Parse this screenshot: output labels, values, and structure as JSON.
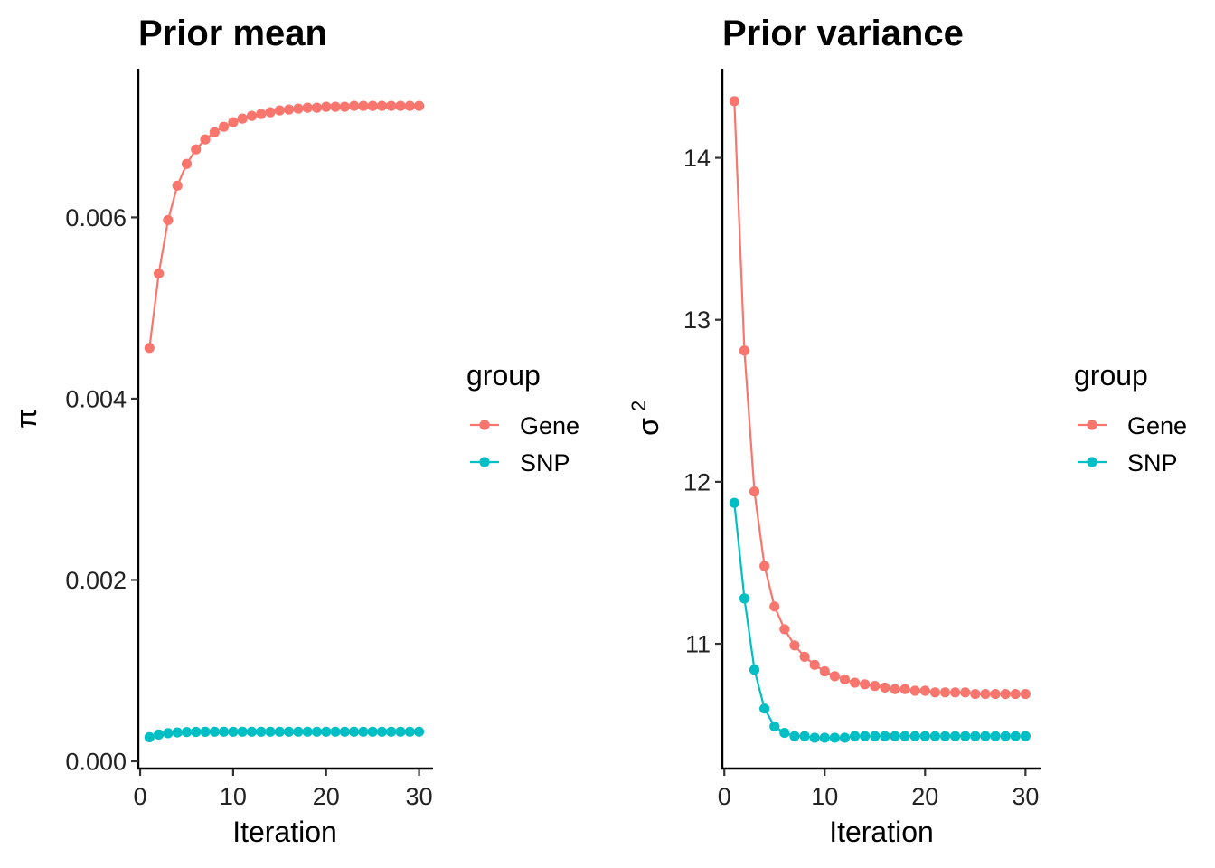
{
  "colors": {
    "Gene": "#F8766D",
    "SNP": "#00BFC4"
  },
  "chart_data": [
    {
      "type": "line",
      "title": "Prior mean",
      "xlabel": "Iteration",
      "ylabel": "π",
      "xlim": [
        -0.2,
        31.5
      ],
      "ylim": [
        -8e-05,
        0.00764
      ],
      "xticks": [
        0,
        10,
        20,
        30
      ],
      "xtick_labels": [
        "0",
        "10",
        "20",
        "30"
      ],
      "yticks": [
        0.0,
        0.002,
        0.004,
        0.006
      ],
      "ytick_labels": [
        "0.000",
        "0.002",
        "0.004",
        "0.006"
      ],
      "legend": {
        "title": "group",
        "entries": [
          "Gene",
          "SNP"
        ],
        "position": "right"
      },
      "series": [
        {
          "name": "Gene",
          "x": [
            1,
            2,
            3,
            4,
            5,
            6,
            7,
            8,
            9,
            10,
            11,
            12,
            13,
            14,
            15,
            16,
            17,
            18,
            19,
            20,
            21,
            22,
            23,
            24,
            25,
            26,
            27,
            28,
            29,
            30
          ],
          "values": [
            0.00456,
            0.00538,
            0.00597,
            0.00635,
            0.00659,
            0.00675,
            0.00686,
            0.00694,
            0.007,
            0.00705,
            0.00709,
            0.00712,
            0.00714,
            0.00716,
            0.00718,
            0.00719,
            0.0072,
            0.00721,
            0.00721,
            0.00722,
            0.00722,
            0.00722,
            0.00723,
            0.00723,
            0.00723,
            0.00723,
            0.00723,
            0.00723,
            0.00723,
            0.00723
          ]
        },
        {
          "name": "SNP",
          "x": [
            1,
            2,
            3,
            4,
            5,
            6,
            7,
            8,
            9,
            10,
            11,
            12,
            13,
            14,
            15,
            16,
            17,
            18,
            19,
            20,
            21,
            22,
            23,
            24,
            25,
            26,
            27,
            28,
            29,
            30
          ],
          "values": [
            0.000265,
            0.000295,
            0.00031,
            0.000318,
            0.000322,
            0.000324,
            0.000325,
            0.000326,
            0.000326,
            0.000326,
            0.000326,
            0.000326,
            0.000326,
            0.000326,
            0.000326,
            0.000326,
            0.000326,
            0.000326,
            0.000326,
            0.000326,
            0.000326,
            0.000326,
            0.000326,
            0.000326,
            0.000326,
            0.000326,
            0.000326,
            0.000326,
            0.000326,
            0.000326
          ]
        }
      ]
    },
    {
      "type": "line",
      "title": "Prior variance",
      "xlabel": "Iteration",
      "ylabel": "σ",
      "ylabel_superscript": "2",
      "xlim": [
        -0.2,
        31.5
      ],
      "ylim": [
        10.23,
        14.55
      ],
      "xticks": [
        0,
        10,
        20,
        30
      ],
      "xtick_labels": [
        "0",
        "10",
        "20",
        "30"
      ],
      "yticks": [
        11,
        12,
        13,
        14
      ],
      "ytick_labels": [
        "11",
        "12",
        "13",
        "14"
      ],
      "legend": {
        "title": "group",
        "entries": [
          "Gene",
          "SNP"
        ],
        "position": "right"
      },
      "series": [
        {
          "name": "Gene",
          "x": [
            1,
            2,
            3,
            4,
            5,
            6,
            7,
            8,
            9,
            10,
            11,
            12,
            13,
            14,
            15,
            16,
            17,
            18,
            19,
            20,
            21,
            22,
            23,
            24,
            25,
            26,
            27,
            28,
            29,
            30
          ],
          "values": [
            14.35,
            12.81,
            11.94,
            11.48,
            11.23,
            11.09,
            10.99,
            10.92,
            10.87,
            10.83,
            10.8,
            10.78,
            10.76,
            10.75,
            10.74,
            10.73,
            10.72,
            10.72,
            10.71,
            10.71,
            10.7,
            10.7,
            10.7,
            10.7,
            10.69,
            10.69,
            10.69,
            10.69,
            10.69,
            10.69
          ]
        },
        {
          "name": "SNP",
          "x": [
            1,
            2,
            3,
            4,
            5,
            6,
            7,
            8,
            9,
            10,
            11,
            12,
            13,
            14,
            15,
            16,
            17,
            18,
            19,
            20,
            21,
            22,
            23,
            24,
            25,
            26,
            27,
            28,
            29,
            30
          ],
          "values": [
            11.87,
            11.28,
            10.84,
            10.6,
            10.49,
            10.45,
            10.43,
            10.43,
            10.42,
            10.42,
            10.42,
            10.42,
            10.43,
            10.43,
            10.43,
            10.43,
            10.43,
            10.43,
            10.43,
            10.43,
            10.43,
            10.43,
            10.43,
            10.43,
            10.43,
            10.43,
            10.43,
            10.43,
            10.43,
            10.43
          ]
        }
      ]
    }
  ]
}
